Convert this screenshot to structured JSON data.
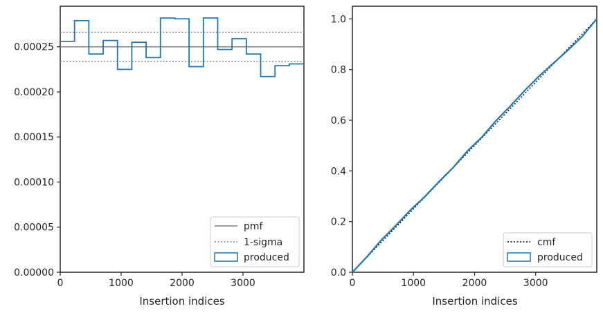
{
  "colors": {
    "produced": "#1f77b4",
    "pmf": "#808080",
    "sigma": "#808080",
    "cmf": "#000000",
    "axes": "#262626"
  },
  "chart_data": [
    {
      "type": "step",
      "xlabel": "Insertion indices",
      "ylabel": "",
      "xlim": [
        0,
        4000
      ],
      "ylim": [
        0,
        0.000295
      ],
      "x_ticks": [
        0,
        1000,
        2000,
        3000
      ],
      "x_tick_labels": [
        "0",
        "1000",
        "2000",
        "3000"
      ],
      "y_ticks": [
        0,
        5e-05,
        0.0001,
        0.00015,
        0.0002,
        0.00025
      ],
      "y_tick_labels": [
        "0.00000",
        "0.00005",
        "0.00010",
        "0.00015",
        "0.00020",
        "0.00025"
      ],
      "grid": false,
      "legend_position": "lower right",
      "legend": [
        "pmf",
        "1-sigma",
        "produced"
      ],
      "pmf": 0.00025,
      "sigma_band": [
        0.000234,
        0.000266
      ],
      "series": [
        {
          "name": "produced",
          "bin_edges": [
            0,
            235,
            470,
            705,
            940,
            1175,
            1410,
            1645,
            1880,
            2115,
            2350,
            2585,
            2820,
            3055,
            3290,
            3525,
            3760,
            4000
          ],
          "values": [
            0.000256,
            0.000279,
            0.000242,
            0.000257,
            0.000225,
            0.000255,
            0.000238,
            0.000282,
            0.000281,
            0.000228,
            0.000282,
            0.000247,
            0.000259,
            0.000242,
            0.000217,
            0.000229,
            0.000231
          ]
        }
      ]
    },
    {
      "type": "line",
      "xlabel": "Insertion indices",
      "ylabel": "",
      "xlim": [
        0,
        4000
      ],
      "ylim": [
        0,
        1.05
      ],
      "x_ticks": [
        0,
        1000,
        2000,
        3000
      ],
      "x_tick_labels": [
        "0",
        "1000",
        "2000",
        "3000"
      ],
      "y_ticks": [
        0,
        0.2,
        0.4,
        0.6,
        0.8,
        1.0
      ],
      "y_tick_labels": [
        "0.0",
        "0.2",
        "0.4",
        "0.6",
        "0.8",
        "1.0"
      ],
      "grid": false,
      "legend_position": "lower right",
      "legend": [
        "cmf",
        "produced"
      ],
      "series": [
        {
          "name": "cmf",
          "x": [
            0,
            4000
          ],
          "y": [
            0,
            1.0
          ]
        },
        {
          "name": "produced",
          "x": [
            0,
            235,
            470,
            705,
            940,
            1175,
            1410,
            1645,
            1880,
            2115,
            2350,
            2585,
            2820,
            3055,
            3290,
            3525,
            3760,
            4000
          ],
          "y": [
            0,
            0.06,
            0.126,
            0.183,
            0.243,
            0.296,
            0.356,
            0.412,
            0.478,
            0.532,
            0.598,
            0.656,
            0.717,
            0.774,
            0.825,
            0.876,
            0.93,
            1.0
          ]
        }
      ]
    }
  ]
}
